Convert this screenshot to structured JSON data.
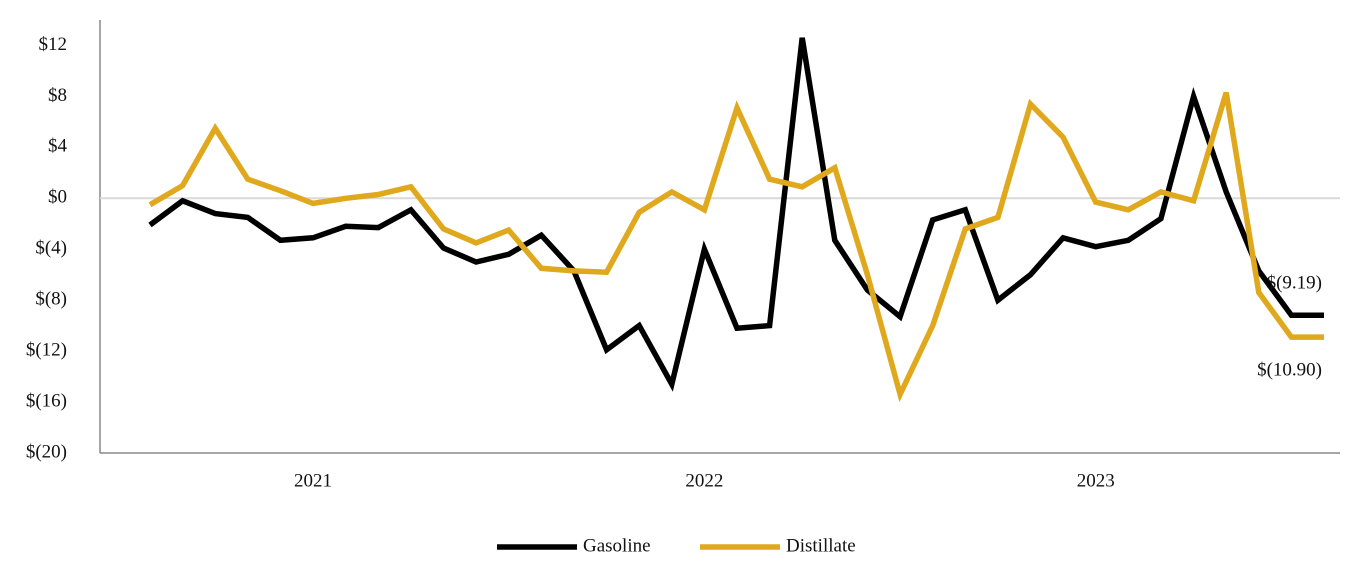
{
  "chart_data": {
    "type": "line",
    "categories": [
      null,
      null,
      null,
      null,
      null,
      "2021",
      null,
      null,
      null,
      null,
      null,
      null,
      null,
      null,
      null,
      null,
      null,
      "2022",
      null,
      null,
      null,
      null,
      null,
      null,
      null,
      null,
      null,
      null,
      null,
      "2023",
      null,
      null,
      null,
      null,
      null,
      null,
      null
    ],
    "series": [
      {
        "name": "Gasoline",
        "color": "#000000",
        "values": [
          -2.1,
          -0.2,
          -1.2,
          -1.5,
          -3.3,
          -3.1,
          -2.2,
          -2.3,
          -0.9,
          -3.9,
          -5.0,
          -4.4,
          -2.9,
          -5.7,
          -11.9,
          -10.0,
          -14.6,
          -4.0,
          -10.2,
          -10.0,
          12.6,
          -3.3,
          -7.2,
          -9.3,
          -1.7,
          -0.9,
          -8.0,
          -6.0,
          -3.1,
          -3.8,
          -3.3,
          -1.6,
          8.0,
          0.5,
          -5.7,
          -9.19,
          -9.19
        ],
        "value_labels": [
          null,
          null,
          null,
          null,
          null,
          null,
          null,
          null,
          null,
          null,
          null,
          null,
          null,
          null,
          null,
          null,
          null,
          null,
          null,
          null,
          null,
          null,
          null,
          null,
          null,
          null,
          null,
          null,
          null,
          null,
          null,
          null,
          null,
          null,
          null,
          null,
          "$(9.19)"
        ]
      },
      {
        "name": "Distillate",
        "color": "#e0a81c",
        "values": [
          -0.5,
          1.0,
          5.5,
          1.5,
          0.6,
          -0.4,
          0.0,
          0.3,
          0.9,
          -2.4,
          -3.5,
          -2.5,
          -5.5,
          -5.7,
          -5.8,
          -1.1,
          0.5,
          -0.9,
          7.1,
          1.5,
          0.9,
          2.4,
          -6.0,
          -15.4,
          -10.0,
          -2.4,
          -1.5,
          7.4,
          4.8,
          -0.3,
          -0.9,
          0.5,
          -0.2,
          8.3,
          -7.4,
          -10.9,
          -10.9
        ],
        "value_labels": [
          null,
          null,
          null,
          null,
          null,
          null,
          null,
          null,
          null,
          null,
          null,
          null,
          null,
          null,
          null,
          null,
          null,
          null,
          null,
          null,
          null,
          null,
          null,
          null,
          null,
          null,
          null,
          null,
          null,
          null,
          null,
          null,
          null,
          null,
          null,
          null,
          "$(10.90)"
        ]
      }
    ],
    "ylim": [
      -20,
      14
    ],
    "yticks": [
      {
        "value": 12,
        "label": "$12"
      },
      {
        "value": 8,
        "label": "$8"
      },
      {
        "value": 4,
        "label": "$4"
      },
      {
        "value": 0,
        "label": "$0"
      },
      {
        "value": -4,
        "label": "$(4)"
      },
      {
        "value": -8,
        "label": "$(8)"
      },
      {
        "value": -12,
        "label": "$(12)"
      },
      {
        "value": -16,
        "label": "$(16)"
      },
      {
        "value": -20,
        "label": "$(20)"
      }
    ],
    "zero_line": true,
    "legend": "bottom"
  }
}
